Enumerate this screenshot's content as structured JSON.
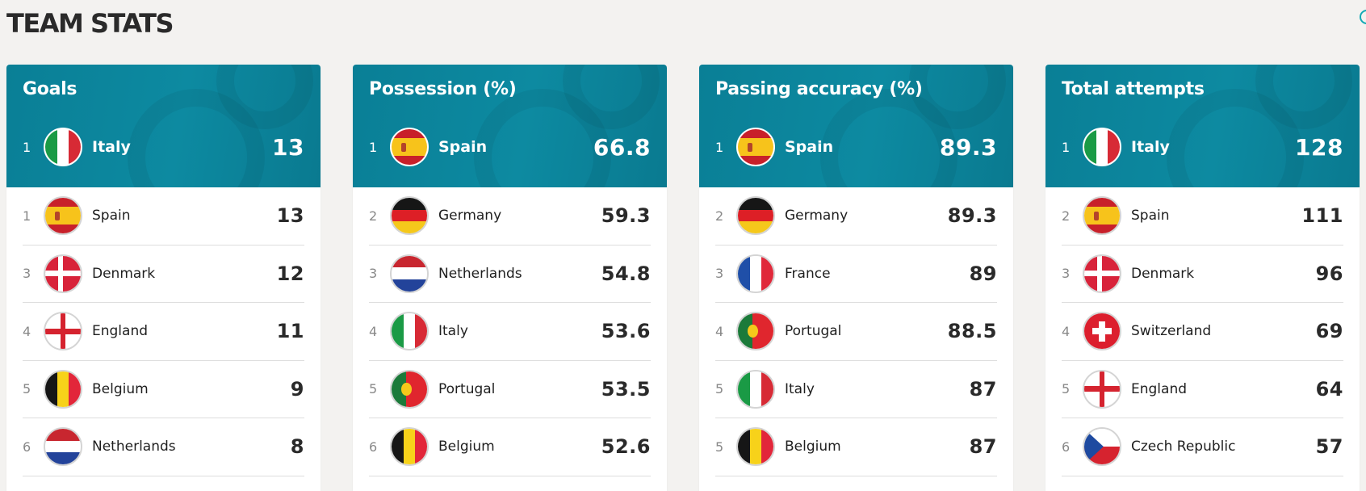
{
  "page_title": "TEAM STATS",
  "cards": [
    {
      "title": "Goals",
      "leader": {
        "rank": "1",
        "team": "Italy",
        "flag": "italy-flag",
        "value": "13"
      },
      "rows": [
        {
          "rank": "1",
          "team": "Spain",
          "flag": "spain-flag",
          "value": "13"
        },
        {
          "rank": "3",
          "team": "Denmark",
          "flag": "denmark-flag",
          "value": "12"
        },
        {
          "rank": "4",
          "team": "England",
          "flag": "england-flag",
          "value": "11"
        },
        {
          "rank": "5",
          "team": "Belgium",
          "flag": "belgium-flag",
          "value": "9"
        },
        {
          "rank": "6",
          "team": "Netherlands",
          "flag": "netherlands-flag",
          "value": "8"
        }
      ]
    },
    {
      "title": "Possession (%)",
      "leader": {
        "rank": "1",
        "team": "Spain",
        "flag": "spain-flag",
        "value": "66.8"
      },
      "rows": [
        {
          "rank": "2",
          "team": "Germany",
          "flag": "germany-flag",
          "value": "59.3"
        },
        {
          "rank": "3",
          "team": "Netherlands",
          "flag": "netherlands-flag",
          "value": "54.8"
        },
        {
          "rank": "4",
          "team": "Italy",
          "flag": "italy-flag",
          "value": "53.6"
        },
        {
          "rank": "5",
          "team": "Portugal",
          "flag": "portugal-flag",
          "value": "53.5"
        },
        {
          "rank": "6",
          "team": "Belgium",
          "flag": "belgium-flag",
          "value": "52.6"
        }
      ]
    },
    {
      "title": "Passing accuracy (%)",
      "leader": {
        "rank": "1",
        "team": "Spain",
        "flag": "spain-flag",
        "value": "89.3"
      },
      "rows": [
        {
          "rank": "2",
          "team": "Germany",
          "flag": "germany-flag",
          "value": "89.3"
        },
        {
          "rank": "3",
          "team": "France",
          "flag": "france-flag",
          "value": "89"
        },
        {
          "rank": "4",
          "team": "Portugal",
          "flag": "portugal-flag",
          "value": "88.5"
        },
        {
          "rank": "5",
          "team": "Italy",
          "flag": "italy-flag",
          "value": "87"
        },
        {
          "rank": "5",
          "team": "Belgium",
          "flag": "belgium-flag",
          "value": "87"
        }
      ]
    },
    {
      "title": "Total attempts",
      "leader": {
        "rank": "1",
        "team": "Italy",
        "flag": "italy-flag",
        "value": "128"
      },
      "rows": [
        {
          "rank": "2",
          "team": "Spain",
          "flag": "spain-flag",
          "value": "111"
        },
        {
          "rank": "3",
          "team": "Denmark",
          "flag": "denmark-flag",
          "value": "96"
        },
        {
          "rank": "4",
          "team": "Switzerland",
          "flag": "switzerland-flag",
          "value": "69"
        },
        {
          "rank": "5",
          "team": "England",
          "flag": "england-flag",
          "value": "64"
        },
        {
          "rank": "6",
          "team": "Czech Republic",
          "flag": "czech-republic-flag",
          "value": "57"
        }
      ]
    }
  ],
  "colors": {
    "header_teal": "#0d8aa1",
    "background": "#f3f2f0",
    "accent_ring": "#13a9b5"
  }
}
